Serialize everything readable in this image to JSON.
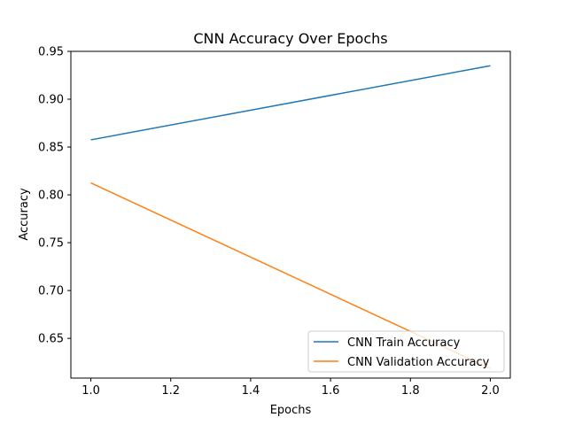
{
  "chart_data": {
    "type": "line",
    "title": "CNN Accuracy Over Epochs",
    "xlabel": "Epochs",
    "ylabel": "Accuracy",
    "x": [
      1.0,
      2.0
    ],
    "series": [
      {
        "name": "CNN Train Accuracy",
        "values": [
          0.8575,
          0.935
        ],
        "color": "#1f77b4"
      },
      {
        "name": "CNN Validation Accuracy",
        "values": [
          0.8125,
          0.6185
        ],
        "color": "#ff7f0e"
      }
    ],
    "xlim": [
      0.95,
      2.05
    ],
    "ylim": [
      0.6085,
      0.95
    ],
    "xticks": [
      1.0,
      1.2,
      1.4,
      1.6,
      1.8,
      2.0
    ],
    "xtick_labels": [
      "1.0",
      "1.2",
      "1.4",
      "1.6",
      "1.8",
      "2.0"
    ],
    "yticks": [
      0.65,
      0.7,
      0.75,
      0.8,
      0.85,
      0.9,
      0.95
    ],
    "ytick_labels": [
      "0.65",
      "0.70",
      "0.75",
      "0.80",
      "0.85",
      "0.90",
      "0.95"
    ],
    "grid": false,
    "legend_position": "lower right"
  }
}
